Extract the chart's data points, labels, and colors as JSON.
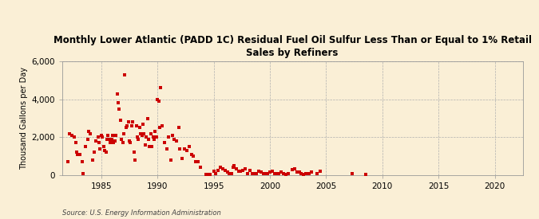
{
  "title": "Monthly Lower Atlantic (PADD 1C) Residual Fuel Oil Sulfur Less Than or Equal to 1% Retail\nSales by Refiners",
  "ylabel": "Thousand Gallons per Day",
  "source": "Source: U.S. Energy Information Administration",
  "background_color": "#faefd6",
  "plot_bg_color": "#faefd6",
  "dot_color": "#cc0000",
  "xlim": [
    1981.5,
    2022.5
  ],
  "ylim": [
    0,
    6000
  ],
  "yticks": [
    0,
    2000,
    4000,
    6000
  ],
  "ytick_labels": [
    "0",
    "2,000",
    "4,000",
    "6,000"
  ],
  "xticks": [
    1985,
    1990,
    1995,
    2000,
    2005,
    2010,
    2015,
    2020
  ],
  "data_x": [
    1982.0,
    1982.2,
    1982.4,
    1982.6,
    1982.7,
    1982.8,
    1982.9,
    1983.1,
    1983.3,
    1983.4,
    1983.6,
    1983.8,
    1983.9,
    1984.0,
    1984.2,
    1984.4,
    1984.5,
    1984.7,
    1984.8,
    1984.9,
    1985.0,
    1985.1,
    1985.2,
    1985.3,
    1985.4,
    1985.5,
    1985.6,
    1985.7,
    1985.8,
    1985.9,
    1986.0,
    1986.1,
    1986.2,
    1986.3,
    1986.4,
    1986.5,
    1986.6,
    1986.7,
    1986.8,
    1986.9,
    1987.0,
    1987.1,
    1987.2,
    1987.3,
    1987.4,
    1987.5,
    1987.6,
    1987.7,
    1987.8,
    1987.9,
    1988.0,
    1988.1,
    1988.2,
    1988.3,
    1988.4,
    1988.5,
    1988.6,
    1988.7,
    1988.8,
    1988.9,
    1989.0,
    1989.1,
    1989.2,
    1989.3,
    1989.4,
    1989.5,
    1989.6,
    1989.7,
    1989.8,
    1989.9,
    1990.0,
    1990.1,
    1990.2,
    1990.3,
    1990.4,
    1990.6,
    1990.8,
    1991.0,
    1991.2,
    1991.3,
    1991.5,
    1991.7,
    1991.9,
    1992.0,
    1992.2,
    1992.4,
    1992.6,
    1992.8,
    1993.0,
    1993.2,
    1993.4,
    1993.6,
    1993.8,
    1994.3,
    1994.5,
    1994.7,
    1995.0,
    1995.2,
    1995.4,
    1995.6,
    1995.8,
    1996.0,
    1996.2,
    1996.4,
    1996.6,
    1996.7,
    1996.8,
    1997.0,
    1997.2,
    1997.4,
    1997.6,
    1997.8,
    1998.0,
    1998.2,
    1998.4,
    1998.6,
    1998.8,
    1999.0,
    1999.2,
    1999.4,
    1999.6,
    1999.8,
    2000.0,
    2000.2,
    2000.4,
    2000.6,
    2000.8,
    2001.0,
    2001.2,
    2001.4,
    2001.6,
    2002.0,
    2002.2,
    2002.4,
    2002.6,
    2002.8,
    2003.0,
    2003.2,
    2003.5,
    2003.7,
    2004.2,
    2004.5,
    2007.3,
    2008.5
  ],
  "data_y": [
    700,
    2200,
    2100,
    2000,
    1700,
    1200,
    1100,
    1100,
    700,
    100,
    1500,
    1900,
    2300,
    2200,
    800,
    1200,
    1800,
    2000,
    1700,
    1400,
    2100,
    2000,
    1500,
    1300,
    1200,
    1900,
    2100,
    1900,
    1700,
    1900,
    2100,
    1700,
    1800,
    2100,
    4300,
    3800,
    3500,
    2900,
    1900,
    1700,
    2200,
    5300,
    2500,
    2600,
    2800,
    1800,
    1700,
    2600,
    2800,
    1200,
    800,
    2600,
    2000,
    1900,
    2500,
    2200,
    2100,
    2700,
    2200,
    1600,
    2000,
    3000,
    1900,
    1500,
    2200,
    1500,
    2000,
    1900,
    2300,
    2000,
    4000,
    3900,
    2500,
    4600,
    2600,
    1700,
    1400,
    2000,
    800,
    2100,
    1900,
    1800,
    2500,
    1400,
    900,
    1400,
    1300,
    1500,
    1100,
    1000,
    700,
    700,
    400,
    50,
    60,
    40,
    200,
    100,
    250,
    400,
    350,
    250,
    150,
    100,
    100,
    400,
    500,
    350,
    200,
    200,
    250,
    350,
    100,
    250,
    100,
    100,
    100,
    200,
    150,
    100,
    100,
    100,
    150,
    200,
    100,
    100,
    100,
    150,
    100,
    50,
    100,
    300,
    350,
    150,
    150,
    100,
    50,
    100,
    100,
    150,
    100,
    200,
    100,
    50
  ]
}
